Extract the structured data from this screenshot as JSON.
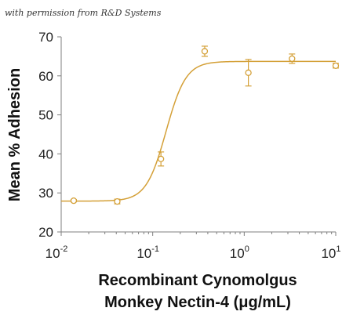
{
  "credit": "with permission from R&D Systems",
  "colors": {
    "series": "#d4a037",
    "axis": "#7f7f7f",
    "text": "#111111"
  },
  "chart_data": {
    "type": "scatter",
    "x_scale": "log",
    "xlabel_line1": "Recombinant Cynomolgus",
    "xlabel_line2": "Monkey Nectin-4 (μg/mL)",
    "ylabel": "Mean % Adhesion",
    "xlim": [
      0.01,
      10
    ],
    "ylim": [
      20,
      70
    ],
    "x_ticks": [
      {
        "base": "10",
        "exp": "-2",
        "value": 0.01
      },
      {
        "base": "10",
        "exp": "-1",
        "value": 0.1
      },
      {
        "base": "10",
        "exp": "0",
        "value": 1
      },
      {
        "base": "10",
        "exp": "1",
        "value": 10
      }
    ],
    "y_ticks": [
      20,
      30,
      40,
      50,
      60,
      70
    ],
    "grid": false,
    "series": [
      {
        "x": [
          0.0137,
          0.041,
          0.123,
          0.37,
          1.11,
          3.33,
          10
        ],
        "y": [
          28.0,
          27.8,
          38.7,
          66.3,
          60.8,
          64.4,
          62.6
        ],
        "error": [
          0.3,
          0.6,
          1.8,
          1.3,
          3.4,
          1.2,
          0.6
        ]
      }
    ],
    "fit": {
      "model": "4PL",
      "bottom": 27.9,
      "top": 63.7,
      "ec50": 0.14,
      "hill": 4.0
    }
  }
}
